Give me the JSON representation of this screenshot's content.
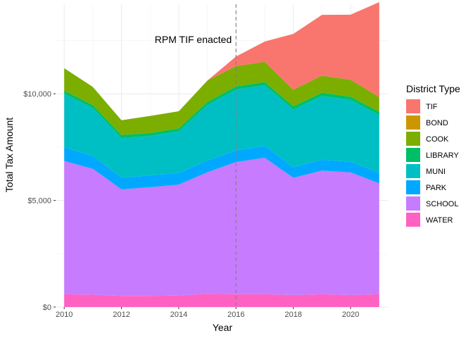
{
  "chart_data": {
    "type": "area",
    "xlabel": "Year",
    "ylabel": "Total Tax Amount",
    "xlim": [
      2009.7,
      2021.3
    ],
    "ylim": [
      0,
      14200
    ],
    "x_ticks": [
      2010,
      2012,
      2014,
      2016,
      2018,
      2020
    ],
    "x_tick_labels": [
      "2010",
      "2012",
      "2014",
      "2016",
      "2018",
      "2020"
    ],
    "y_ticks": [
      0,
      5000,
      10000
    ],
    "y_tick_labels": [
      "$0",
      "$5,000",
      "$10,000"
    ],
    "grid": true,
    "legend_title": "District Type",
    "legend_position": "right",
    "stack_order_top_to_bottom": [
      "TIF",
      "BOND",
      "COOK",
      "LIBRARY",
      "MUNI",
      "PARK",
      "SCHOOL",
      "WATER"
    ],
    "x": [
      2010,
      2011,
      2012,
      2013,
      2014,
      2015,
      2016,
      2017,
      2018,
      2019,
      2020,
      2021
    ],
    "series": [
      {
        "name": "WATER",
        "color": "#FF61C3",
        "values": [
          600,
          580,
          520,
          520,
          540,
          620,
          600,
          600,
          560,
          600,
          560,
          600
        ]
      },
      {
        "name": "SCHOOL",
        "color": "#C77CFF",
        "values": [
          6250,
          5900,
          5000,
          5100,
          5200,
          5700,
          6200,
          6400,
          5500,
          5800,
          5750,
          5200
        ]
      },
      {
        "name": "PARK",
        "color": "#00A9FF",
        "values": [
          650,
          600,
          550,
          550,
          550,
          550,
          550,
          550,
          500,
          500,
          500,
          500
        ]
      },
      {
        "name": "MUNI",
        "color": "#00BFC4",
        "values": [
          2500,
          2250,
          1850,
          1850,
          1950,
          2600,
          2850,
          2850,
          2700,
          3000,
          2900,
          2700
        ]
      },
      {
        "name": "LIBRARY",
        "color": "#00BE67",
        "values": [
          150,
          140,
          140,
          140,
          140,
          150,
          150,
          150,
          150,
          150,
          150,
          150
        ]
      },
      {
        "name": "COOK",
        "color": "#7CAE00",
        "values": [
          1050,
          850,
          700,
          800,
          800,
          1000,
          950,
          950,
          780,
          800,
          800,
          700
        ]
      },
      {
        "name": "BOND",
        "color": "#CD9600",
        "values": [
          0,
          0,
          0,
          0,
          0,
          0,
          0,
          0,
          0,
          0,
          0,
          0
        ]
      },
      {
        "name": "TIF",
        "color": "#F8766D",
        "values": [
          0,
          0,
          0,
          0,
          0,
          0,
          450,
          950,
          2620,
          2850,
          3050,
          4450
        ]
      }
    ],
    "annotations": [
      {
        "type": "vline",
        "x": 2016,
        "style": "dashed",
        "color": "#808080"
      },
      {
        "type": "text",
        "x": 2015.85,
        "y": 12550,
        "text": "RPM TIF enacted"
      }
    ]
  }
}
